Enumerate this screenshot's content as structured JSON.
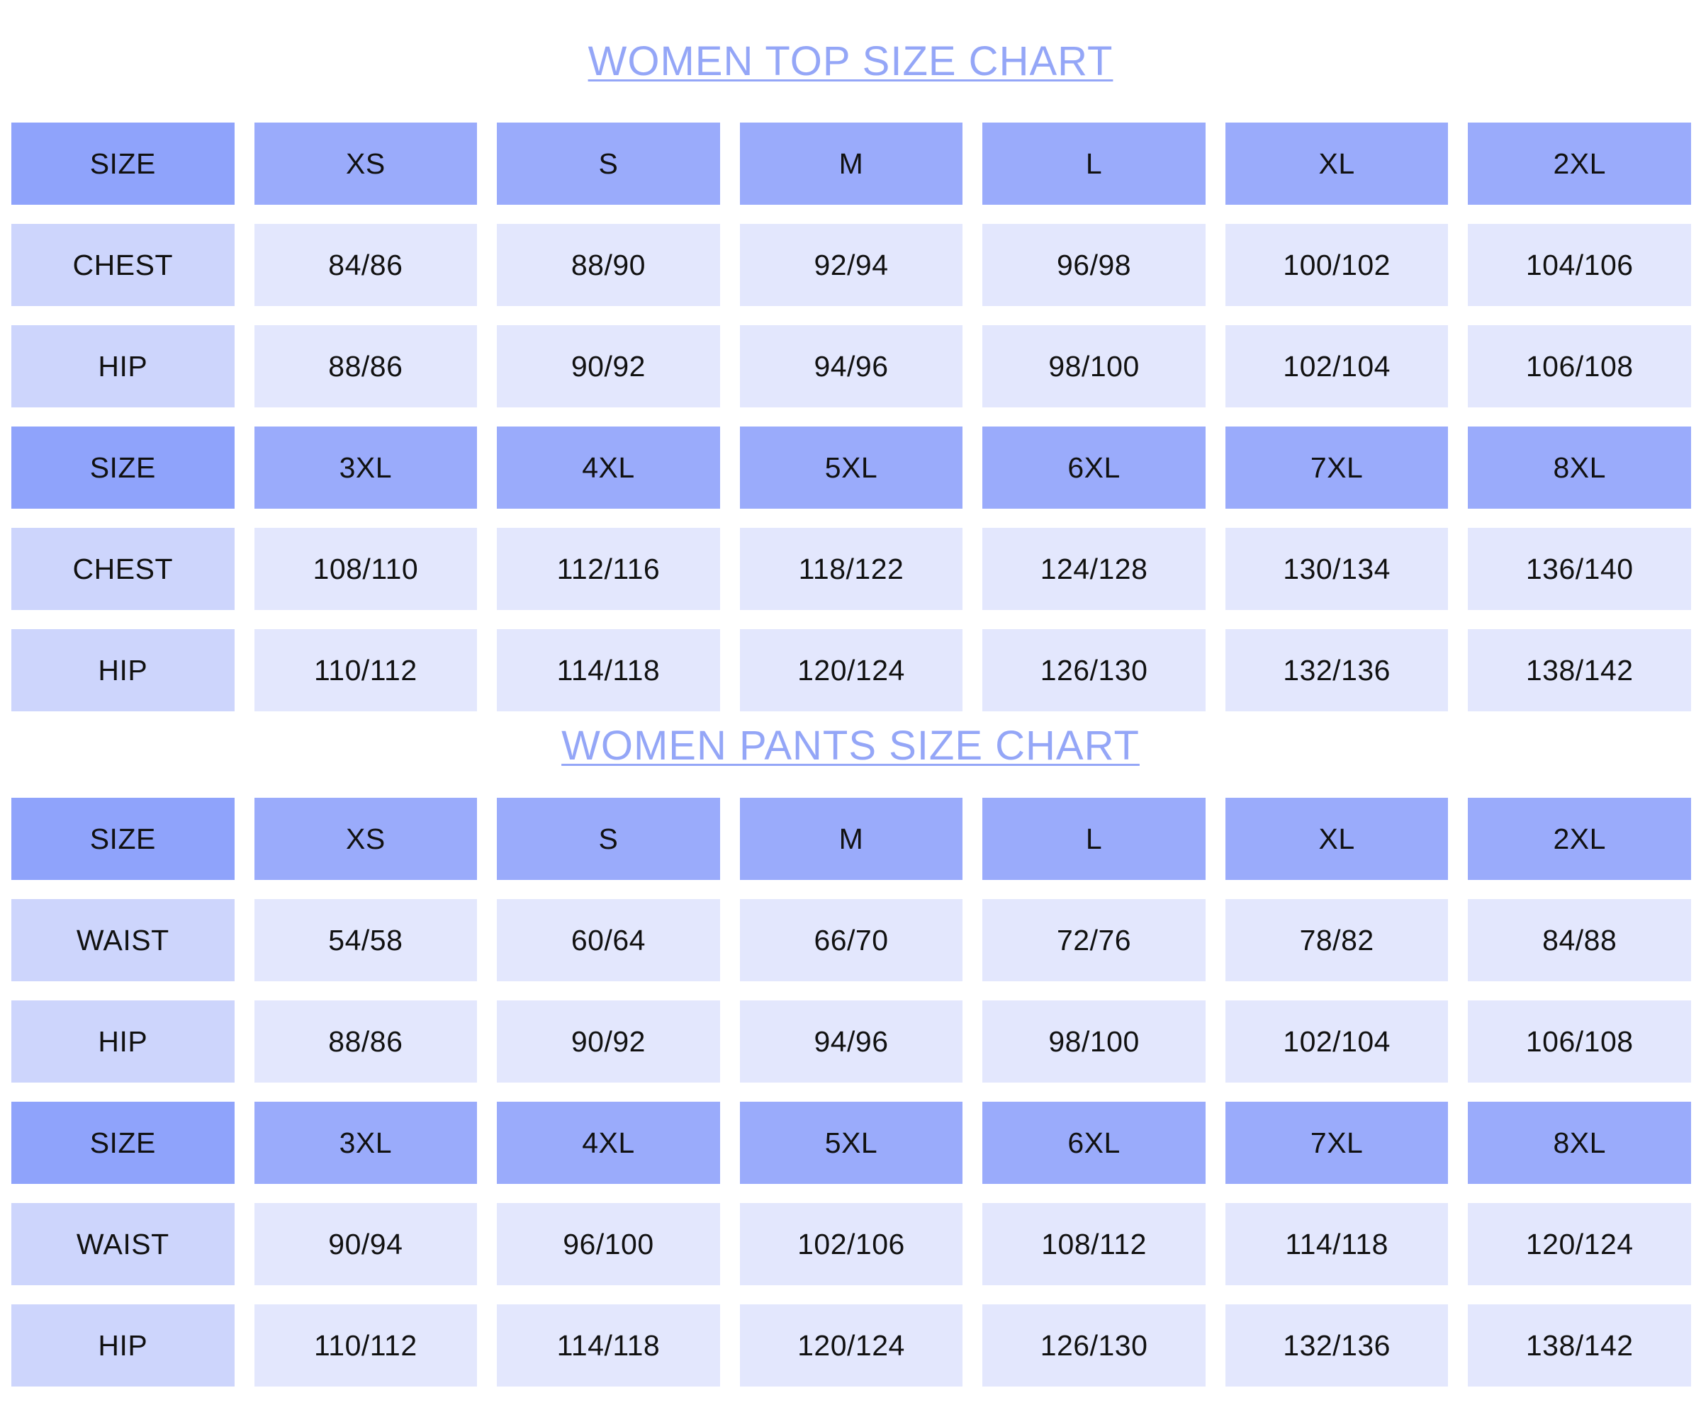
{
  "colors": {
    "title": "#94a6f7",
    "header_label": "#8fa3fb",
    "header": "#9aabfb",
    "row_label": "#cdd5fc",
    "row_value": "#e3e7fd"
  },
  "top_chart": {
    "title": "WOMEN TOP SIZE CHART",
    "blocks": [
      {
        "header": [
          "SIZE",
          "XS",
          "S",
          "M",
          "L",
          "XL",
          "2XL"
        ],
        "rows": [
          [
            "CHEST",
            "84/86",
            "88/90",
            "92/94",
            "96/98",
            "100/102",
            "104/106"
          ],
          [
            "HIP",
            "88/86",
            "90/92",
            "94/96",
            "98/100",
            "102/104",
            "106/108"
          ]
        ]
      },
      {
        "header": [
          "SIZE",
          "3XL",
          "4XL",
          "5XL",
          "6XL",
          "7XL",
          "8XL"
        ],
        "rows": [
          [
            "CHEST",
            "108/110",
            "112/116",
            "118/122",
            "124/128",
            "130/134",
            "136/140"
          ],
          [
            "HIP",
            "110/112",
            "114/118",
            "120/124",
            "126/130",
            "132/136",
            "138/142"
          ]
        ]
      }
    ]
  },
  "pants_chart": {
    "title": "WOMEN PANTS SIZE CHART",
    "blocks": [
      {
        "header": [
          "SIZE",
          "XS",
          "S",
          "M",
          "L",
          "XL",
          "2XL"
        ],
        "rows": [
          [
            "WAIST",
            "54/58",
            "60/64",
            "66/70",
            "72/76",
            "78/82",
            "84/88"
          ],
          [
            "HIP",
            "88/86",
            "90/92",
            "94/96",
            "98/100",
            "102/104",
            "106/108"
          ]
        ]
      },
      {
        "header": [
          "SIZE",
          "3XL",
          "4XL",
          "5XL",
          "6XL",
          "7XL",
          "8XL"
        ],
        "rows": [
          [
            "WAIST",
            "90/94",
            "96/100",
            "102/106",
            "108/112",
            "114/118",
            "120/124"
          ],
          [
            "HIP",
            "110/112",
            "114/118",
            "120/124",
            "126/130",
            "132/136",
            "138/142"
          ]
        ]
      }
    ]
  }
}
